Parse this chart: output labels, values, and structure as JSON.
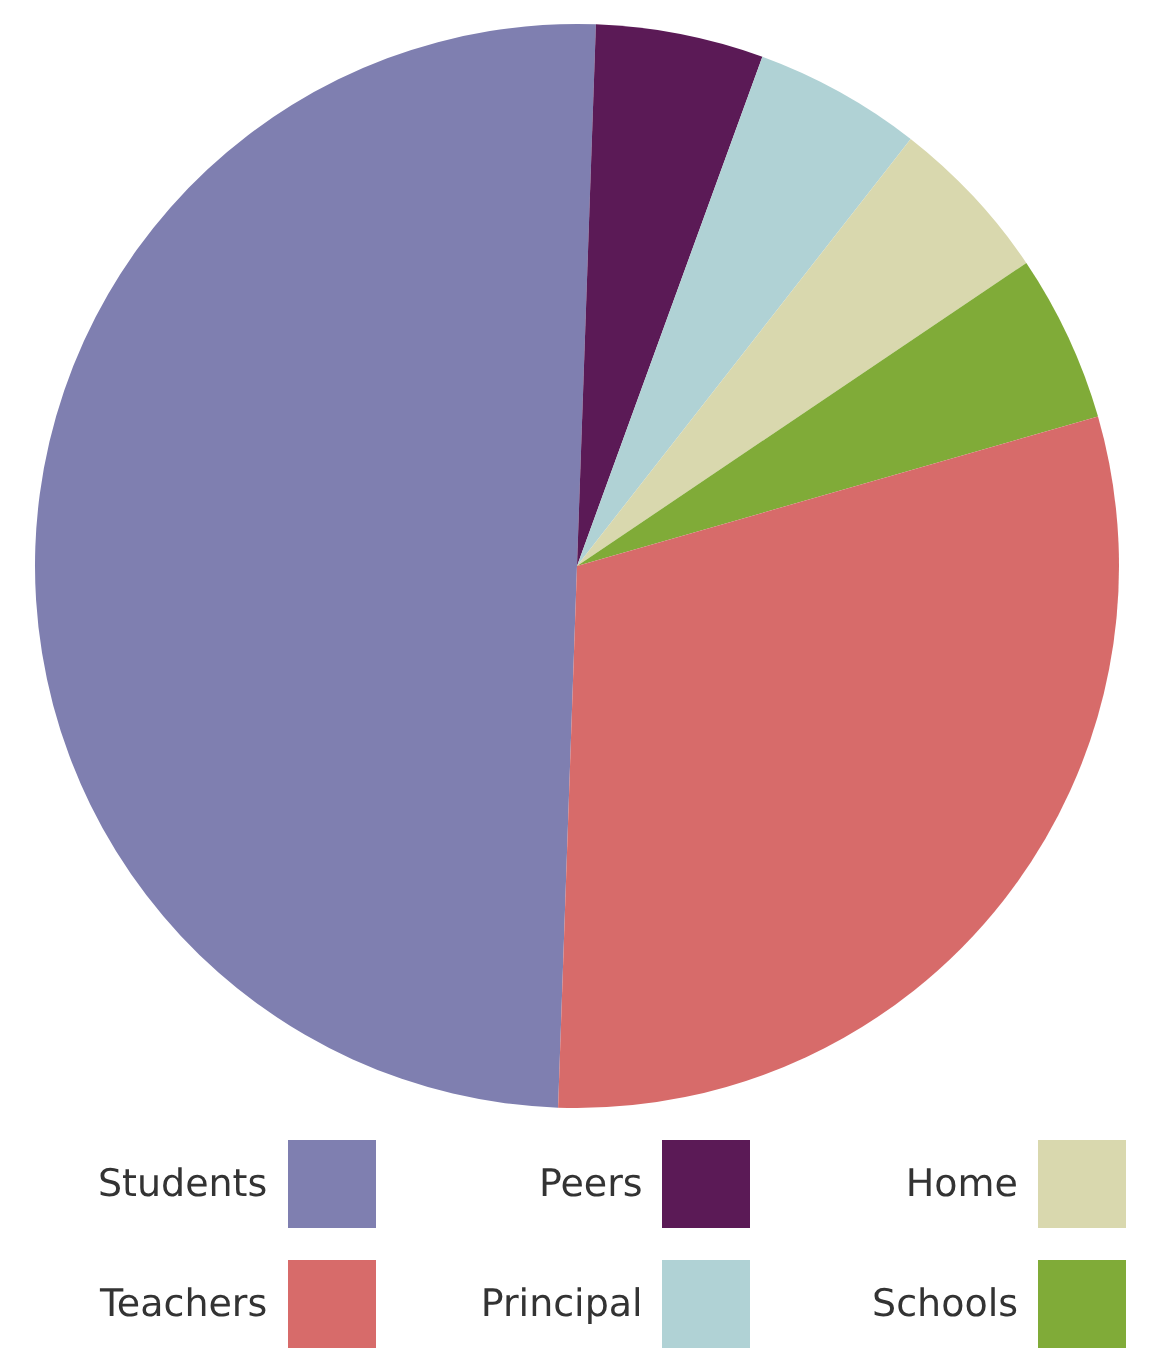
{
  "chart_data": {
    "type": "pie",
    "categories": [
      "Students",
      "Peers",
      "Principal",
      "Home",
      "Schools",
      "Teachers"
    ],
    "values": [
      50,
      5,
      5,
      5,
      5,
      30
    ],
    "colors": [
      "#7f7fb0",
      "#5b1a56",
      "#b0d2d5",
      "#d9d8ae",
      "#80ab38",
      "#d76b6a"
    ],
    "legend": "bottom"
  }
}
